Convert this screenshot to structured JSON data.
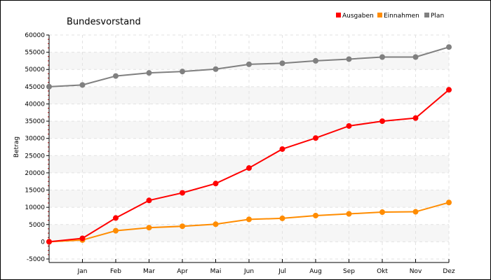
{
  "chart_data": {
    "type": "line",
    "title": "Bundesvorstand",
    "ylabel": "Betrag",
    "xlabel": "",
    "ylim": [
      -5000,
      60000
    ],
    "y_ticks": [
      -5000,
      0,
      5000,
      10000,
      15000,
      20000,
      25000,
      30000,
      35000,
      40000,
      45000,
      50000,
      55000,
      60000
    ],
    "categories": [
      "",
      "Jan",
      "Feb",
      "Mar",
      "Apr",
      "Mai",
      "Jun",
      "Jul",
      "Aug",
      "Sep",
      "Okt",
      "Nov",
      "Dez"
    ],
    "grid": true,
    "legend_position": "top-right",
    "series": [
      {
        "name": "Ausgaben",
        "color": "#ff0000",
        "values": [
          0,
          1000,
          6900,
          12000,
          14200,
          16900,
          21400,
          26900,
          30100,
          33600,
          35000,
          35900,
          44100
        ]
      },
      {
        "name": "Einnahmen",
        "color": "#ff8c00",
        "values": [
          0,
          500,
          3200,
          4100,
          4500,
          5100,
          6500,
          6800,
          7600,
          8100,
          8600,
          8700,
          11400
        ]
      },
      {
        "name": "Plan",
        "color": "#808080",
        "values": [
          45000,
          45500,
          48100,
          49000,
          49400,
          50100,
          51500,
          51800,
          52500,
          53000,
          53600,
          53600,
          56500
        ]
      }
    ]
  }
}
